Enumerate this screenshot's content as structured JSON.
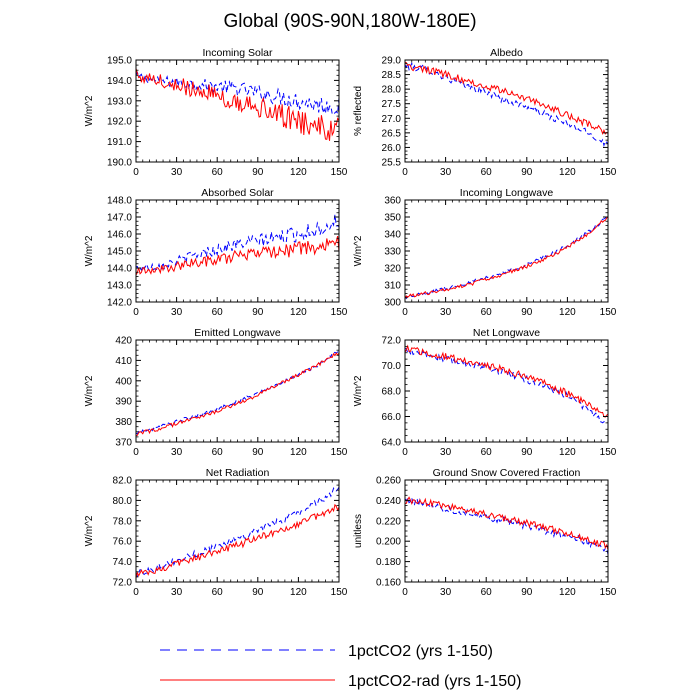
{
  "figure": {
    "title": "Global (90S-90N,180W-180E)"
  },
  "legend": [
    {
      "label": "1pctCO2 (yrs 1-150)",
      "color": "#0000ff",
      "dash": "dashed"
    },
    {
      "label": "1pctCO2-rad (yrs 1-150)",
      "color": "#ff0000",
      "dash": "solid"
    }
  ],
  "chart_data": [
    {
      "type": "line",
      "title": "Incoming Solar",
      "ylabel": "W/m^2",
      "xlim": [
        0,
        150
      ],
      "xticks": [
        0,
        30,
        60,
        90,
        120,
        150
      ],
      "ylim": [
        190.0,
        195.0
      ],
      "yticks": [
        190.0,
        191.0,
        192.0,
        193.0,
        194.0,
        195.0
      ],
      "ydec": 1,
      "series": [
        {
          "name": "1pctCO2 (yrs 1-150)",
          "color": "#0000ff",
          "dash": true,
          "x": [
            0,
            15,
            30,
            45,
            60,
            75,
            90,
            105,
            120,
            135,
            150
          ],
          "y": [
            194.2,
            194.0,
            193.9,
            193.8,
            193.7,
            193.6,
            193.4,
            193.2,
            193.0,
            192.8,
            192.7
          ]
        },
        {
          "name": "1pctCO2-rad (yrs 1-150)",
          "color": "#ff0000",
          "dash": false,
          "x": [
            0,
            15,
            30,
            45,
            60,
            75,
            90,
            105,
            120,
            135,
            150
          ],
          "y": [
            194.3,
            194.0,
            193.8,
            193.5,
            193.3,
            193.0,
            192.7,
            192.4,
            192.0,
            191.7,
            191.5
          ]
        }
      ]
    },
    {
      "type": "line",
      "title": "Albedo",
      "ylabel": "% reflected",
      "xlim": [
        0,
        150
      ],
      "xticks": [
        0,
        30,
        60,
        90,
        120,
        150
      ],
      "ylim": [
        25.5,
        29.0
      ],
      "yticks": [
        25.5,
        26.0,
        26.5,
        27.0,
        27.5,
        28.0,
        28.5,
        29.0
      ],
      "ydec": 1,
      "series": [
        {
          "name": "1pctCO2 (yrs 1-150)",
          "color": "#0000ff",
          "dash": true,
          "x": [
            0,
            15,
            30,
            45,
            60,
            75,
            90,
            105,
            120,
            135,
            150
          ],
          "y": [
            28.8,
            28.7,
            28.4,
            28.1,
            27.9,
            27.6,
            27.4,
            27.1,
            26.8,
            26.5,
            26.1
          ]
        },
        {
          "name": "1pctCO2-rad (yrs 1-150)",
          "color": "#ff0000",
          "dash": false,
          "x": [
            0,
            15,
            30,
            45,
            60,
            75,
            90,
            105,
            120,
            135,
            150
          ],
          "y": [
            28.8,
            28.7,
            28.5,
            28.3,
            28.1,
            27.9,
            27.7,
            27.4,
            27.1,
            26.8,
            26.5
          ]
        }
      ]
    },
    {
      "type": "line",
      "title": "Absorbed Solar",
      "ylabel": "W/m^2",
      "xlim": [
        0,
        150
      ],
      "xticks": [
        0,
        30,
        60,
        90,
        120,
        150
      ],
      "ylim": [
        142.0,
        148.0
      ],
      "yticks": [
        142.0,
        143.0,
        144.0,
        145.0,
        146.0,
        147.0,
        148.0
      ],
      "ydec": 1,
      "series": [
        {
          "name": "1pctCO2 (yrs 1-150)",
          "color": "#0000ff",
          "dash": true,
          "x": [
            0,
            15,
            30,
            45,
            60,
            75,
            90,
            105,
            120,
            135,
            150
          ],
          "y": [
            144.0,
            144.1,
            144.4,
            144.8,
            145.1,
            145.4,
            145.6,
            145.8,
            146.0,
            146.3,
            146.8
          ]
        },
        {
          "name": "1pctCO2-rad (yrs 1-150)",
          "color": "#ff0000",
          "dash": false,
          "x": [
            0,
            15,
            30,
            45,
            60,
            75,
            90,
            105,
            120,
            135,
            150
          ],
          "y": [
            143.8,
            143.9,
            144.1,
            144.3,
            144.5,
            144.7,
            144.8,
            145.0,
            145.1,
            145.2,
            145.4
          ]
        }
      ]
    },
    {
      "type": "line",
      "title": "Incoming Longwave",
      "ylabel": "W/m^2",
      "xlim": [
        0,
        150
      ],
      "xticks": [
        0,
        30,
        60,
        90,
        120,
        150
      ],
      "ylim": [
        300,
        360
      ],
      "yticks": [
        300,
        310,
        320,
        330,
        340,
        350,
        360
      ],
      "ydec": 0,
      "series": [
        {
          "name": "1pctCO2 (yrs 1-150)",
          "color": "#0000ff",
          "dash": true,
          "x": [
            0,
            15,
            30,
            45,
            60,
            75,
            90,
            105,
            120,
            135,
            150
          ],
          "y": [
            303,
            305,
            308,
            311,
            314,
            318,
            322,
            327,
            333,
            341,
            350
          ]
        },
        {
          "name": "1pctCO2-rad (yrs 1-150)",
          "color": "#ff0000",
          "dash": false,
          "x": [
            0,
            15,
            30,
            45,
            60,
            75,
            90,
            105,
            120,
            135,
            150
          ],
          "y": [
            303,
            305,
            307,
            310,
            313,
            317,
            321,
            326,
            332,
            340,
            350
          ]
        }
      ]
    },
    {
      "type": "line",
      "title": "Emitted Longwave",
      "ylabel": "W/m^2",
      "xlim": [
        0,
        150
      ],
      "xticks": [
        0,
        30,
        60,
        90,
        120,
        150
      ],
      "ylim": [
        370,
        420
      ],
      "yticks": [
        370,
        380,
        390,
        400,
        410,
        420
      ],
      "ydec": 0,
      "series": [
        {
          "name": "1pctCO2 (yrs 1-150)",
          "color": "#0000ff",
          "dash": true,
          "x": [
            0,
            15,
            30,
            45,
            60,
            75,
            90,
            105,
            120,
            135,
            150
          ],
          "y": [
            374,
            377,
            380,
            383,
            386,
            390,
            394,
            398,
            403,
            408,
            415
          ]
        },
        {
          "name": "1pctCO2-rad (yrs 1-150)",
          "color": "#ff0000",
          "dash": false,
          "x": [
            0,
            15,
            30,
            45,
            60,
            75,
            90,
            105,
            120,
            135,
            150
          ],
          "y": [
            374,
            376,
            379,
            382,
            385,
            389,
            393,
            398,
            403,
            408,
            414
          ]
        }
      ]
    },
    {
      "type": "line",
      "title": "Net Longwave",
      "ylabel": "W/m^2",
      "xlim": [
        0,
        150
      ],
      "xticks": [
        0,
        30,
        60,
        90,
        120,
        150
      ],
      "ylim": [
        64.0,
        72.0
      ],
      "yticks": [
        64.0,
        66.0,
        68.0,
        70.0,
        72.0
      ],
      "ydec": 1,
      "series": [
        {
          "name": "1pctCO2 (yrs 1-150)",
          "color": "#0000ff",
          "dash": true,
          "x": [
            0,
            15,
            30,
            45,
            60,
            75,
            90,
            105,
            120,
            135,
            150
          ],
          "y": [
            71.2,
            70.9,
            70.5,
            70.2,
            69.9,
            69.4,
            68.9,
            68.3,
            67.6,
            66.6,
            65.3
          ]
        },
        {
          "name": "1pctCO2-rad (yrs 1-150)",
          "color": "#ff0000",
          "dash": false,
          "x": [
            0,
            15,
            30,
            45,
            60,
            75,
            90,
            105,
            120,
            135,
            150
          ],
          "y": [
            71.3,
            71.0,
            70.7,
            70.3,
            70.0,
            69.6,
            69.1,
            68.5,
            67.8,
            67.0,
            66.0
          ]
        }
      ]
    },
    {
      "type": "line",
      "title": "Net Radiation",
      "ylabel": "W/m^2",
      "xlim": [
        0,
        150
      ],
      "xticks": [
        0,
        30,
        60,
        90,
        120,
        150
      ],
      "ylim": [
        72.0,
        82.0
      ],
      "yticks": [
        72.0,
        74.0,
        76.0,
        78.0,
        80.0,
        82.0
      ],
      "ydec": 1,
      "series": [
        {
          "name": "1pctCO2 (yrs 1-150)",
          "color": "#0000ff",
          "dash": true,
          "x": [
            0,
            15,
            30,
            45,
            60,
            75,
            90,
            105,
            120,
            135,
            150
          ],
          "y": [
            72.8,
            73.4,
            74.1,
            74.8,
            75.5,
            76.3,
            77.1,
            77.9,
            78.8,
            79.9,
            81.3
          ]
        },
        {
          "name": "1pctCO2-rad (yrs 1-150)",
          "color": "#ff0000",
          "dash": false,
          "x": [
            0,
            15,
            30,
            45,
            60,
            75,
            90,
            105,
            120,
            135,
            150
          ],
          "y": [
            72.7,
            73.2,
            73.8,
            74.4,
            75.0,
            75.6,
            76.3,
            77.0,
            77.7,
            78.5,
            79.4
          ]
        }
      ]
    },
    {
      "type": "line",
      "title": "Ground Snow Covered Fraction",
      "ylabel": "unitless",
      "xlim": [
        0,
        150
      ],
      "xticks": [
        0,
        30,
        60,
        90,
        120,
        150
      ],
      "ylim": [
        0.16,
        0.26
      ],
      "yticks": [
        0.16,
        0.18,
        0.2,
        0.22,
        0.24,
        0.26
      ],
      "ydec": 3,
      "series": [
        {
          "name": "1pctCO2 (yrs 1-150)",
          "color": "#0000ff",
          "dash": true,
          "x": [
            0,
            15,
            30,
            45,
            60,
            75,
            90,
            105,
            120,
            135,
            150
          ],
          "y": [
            0.24,
            0.237,
            0.232,
            0.228,
            0.224,
            0.22,
            0.215,
            0.21,
            0.205,
            0.199,
            0.19
          ]
        },
        {
          "name": "1pctCO2-rad (yrs 1-150)",
          "color": "#ff0000",
          "dash": false,
          "x": [
            0,
            15,
            30,
            45,
            60,
            75,
            90,
            105,
            120,
            135,
            150
          ],
          "y": [
            0.24,
            0.238,
            0.234,
            0.23,
            0.226,
            0.222,
            0.218,
            0.213,
            0.208,
            0.202,
            0.195
          ]
        }
      ]
    }
  ]
}
